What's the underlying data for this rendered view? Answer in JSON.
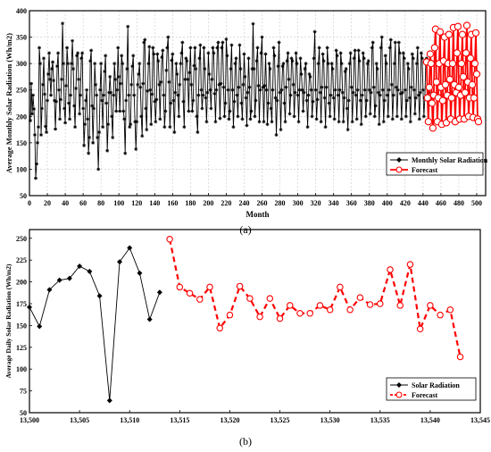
{
  "chart_data": [
    {
      "type": "line",
      "xlabel": "Month",
      "ylabel": "Average Monthly Solar Radiation (Wh/m2)",
      "xlim": [
        0,
        510
      ],
      "ylim": [
        50,
        400
      ],
      "x_ticks": [
        0,
        20,
        40,
        60,
        80,
        100,
        120,
        140,
        160,
        180,
        200,
        220,
        240,
        260,
        280,
        300,
        320,
        340,
        360,
        380,
        400,
        420,
        440,
        460,
        480,
        500
      ],
      "y_ticks": [
        50,
        100,
        150,
        200,
        250,
        300,
        350,
        400
      ],
      "grid": true,
      "legend_position": "bottom-right",
      "series": [
        {
          "name": "Monthly Solar Radiation",
          "color": "#000000",
          "x_start": 1,
          "values": [
            192,
            262,
            205,
            240,
            214,
            165,
            83,
            110,
            150,
            180,
            330,
            300,
            165,
            215,
            260,
            310,
            242,
            181,
            170,
            230,
            280,
            320,
            270,
            240,
            290,
            303,
            268,
            230,
            176,
            228,
            295,
            320,
            250,
            195,
            232,
            270,
            376,
            300,
            215,
            188,
            258,
            330,
            300,
            225,
            195,
            240,
            300,
            343,
            290,
            220,
            180,
            253,
            315,
            320,
            270,
            205,
            240,
            310,
            320,
            215,
            145,
            185,
            230,
            250,
            195,
            130,
            160,
            305,
            325,
            220,
            150,
            215,
            300,
            260,
            240,
            160,
            100,
            170,
            250,
            300,
            230,
            180,
            240,
            285,
            315,
            225,
            135,
            185,
            245,
            275,
            245,
            200,
            160,
            240,
            300,
            270,
            210,
            250,
            330,
            275,
            210,
            262,
            315,
            300,
            210,
            195,
            130,
            230,
            290,
            370,
            240,
            180,
            185,
            260,
            295,
            315,
            240,
            190,
            138,
            190,
            260,
            280,
            300,
            255,
            200,
            163,
            262,
            340,
            345,
            215,
            175,
            248,
            300,
            332,
            250,
            185,
            242,
            330,
            318,
            228,
            190,
            232,
            318,
            305,
            260,
            195,
            265,
            312,
            325,
            240,
            180,
            210,
            287,
            330,
            350,
            265,
            180,
            225,
            306,
            318,
            230,
            170,
            245,
            300,
            280,
            240,
            200,
            260,
            300,
            320,
            340,
            228,
            180,
            270,
            310,
            305,
            270,
            210,
            283,
            330,
            260,
            210,
            230,
            296,
            330,
            290,
            200,
            170,
            240,
            310,
            335,
            250,
            215,
            240,
            330,
            290,
            235,
            190,
            245,
            320,
            280,
            250,
            215,
            270,
            330,
            320,
            243,
            190,
            250,
            330,
            340,
            260,
            196,
            262,
            330,
            340,
            255,
            200,
            225,
            346,
            315,
            250,
            195,
            210,
            290,
            335,
            250,
            180,
            228,
            300,
            310,
            240,
            200,
            255,
            335,
            290,
            225,
            195,
            260,
            318,
            275,
            235,
            183,
            245,
            310,
            255,
            195,
            210,
            290,
            375,
            290,
            200,
            230,
            305,
            330,
            258,
            190,
            250,
            320,
            350,
            255,
            190,
            258,
            318,
            250,
            185,
            225,
            300,
            290,
            215,
            190,
            250,
            330,
            315,
            235,
            165,
            230,
            295,
            340,
            245,
            175,
            250,
            295,
            300,
            225,
            190,
            255,
            305,
            320,
            270,
            205,
            240,
            310,
            305,
            260,
            200,
            245,
            320,
            300,
            240,
            190,
            250,
            310,
            280,
            250,
            210,
            245,
            290,
            300,
            230,
            180,
            240,
            280,
            275,
            250,
            200,
            228,
            310,
            360,
            250,
            195,
            232,
            300,
            330,
            245,
            190,
            255,
            318,
            305,
            235,
            180,
            255,
            330,
            300,
            225,
            200,
            240,
            300,
            290,
            235,
            195,
            250,
            325,
            315,
            240,
            190,
            250,
            320,
            300,
            245,
            190,
            235,
            285,
            290,
            215,
            175,
            230,
            300,
            320,
            255,
            190,
            245,
            310,
            325,
            240,
            195,
            250,
            325,
            305,
            230,
            185,
            240,
            320,
            310,
            250,
            200,
            230,
            300,
            305,
            250,
            205,
            245,
            330,
            340,
            255,
            200,
            220,
            300,
            290,
            245,
            185,
            240,
            330,
            350,
            250,
            190,
            230,
            315,
            300,
            240,
            200,
            250,
            330,
            345,
            260,
            195,
            240,
            300,
            340,
            255,
            200,
            250,
            340,
            320,
            243,
            195,
            245,
            320,
            310,
            250,
            200,
            230,
            300,
            290,
            235,
            190,
            255,
            318,
            310,
            250,
            205,
            235,
            300,
            330,
            240,
            195,
            245,
            320,
            310,
            250,
            200,
            235,
            300,
            310,
            240,
            190,
            245
          ]
        },
        {
          "name": "Forecast",
          "color": "#ff0000",
          "x_start": 444,
          "values": [
            303,
            235,
            190,
            255,
            318,
            300,
            225,
            178,
            240,
            330,
            365,
            265,
            190,
            235,
            300,
            360,
            255,
            185,
            230,
            305,
            350,
            260,
            188,
            240,
            300,
            355,
            270,
            195,
            235,
            300,
            368,
            260,
            190,
            245,
            320,
            370,
            255,
            195,
            240,
            300,
            355,
            275,
            195,
            245,
            320,
            372,
            265,
            200,
            235,
            310,
            355,
            260,
            198,
            235,
            300,
            358,
            280,
            195,
            190
          ]
        }
      ]
    },
    {
      "type": "line",
      "xlabel": "",
      "ylabel": "Average Daily Solar Radiation (Wh/m2)",
      "xlim": [
        13500,
        13545
      ],
      "ylim": [
        50,
        260
      ],
      "x_ticks": [
        13500,
        13505,
        13510,
        13515,
        13520,
        13525,
        13530,
        13535,
        13540,
        13545
      ],
      "x_tick_labels": [
        "13,500",
        "13,505",
        "13,510",
        "13,515",
        "13,520",
        "13,525",
        "13,530",
        "13,535",
        "13,540",
        "13,545"
      ],
      "y_ticks": [
        50,
        75,
        100,
        125,
        150,
        175,
        200,
        225,
        250
      ],
      "grid": false,
      "legend_position": "bottom-right",
      "series": [
        {
          "name": "Solar Radiation",
          "color": "#000000",
          "x": [
            13500,
            13501,
            13502,
            13503,
            13504,
            13505,
            13506,
            13507,
            13508,
            13509,
            13510,
            13511,
            13512,
            13513
          ],
          "y": [
            171,
            149,
            191,
            202,
            204,
            218,
            212,
            184,
            64,
            223,
            239,
            210,
            157,
            188
          ]
        },
        {
          "name": "Forecast",
          "color": "#ff0000",
          "x": [
            13514,
            13515,
            13516,
            13517,
            13518,
            13519,
            13520,
            13521,
            13522,
            13523,
            13524,
            13525,
            13526,
            13527,
            13528,
            13529,
            13530,
            13531,
            13532,
            13533,
            13534,
            13535,
            13536,
            13537,
            13538,
            13539,
            13540,
            13541,
            13542,
            13543
          ],
          "y": [
            249,
            194,
            187,
            180,
            194,
            147,
            162,
            195,
            181,
            160,
            181,
            158,
            173,
            164,
            164,
            173,
            168,
            194,
            168,
            182,
            174,
            175,
            214,
            173,
            220,
            146,
            173,
            162,
            168,
            114
          ]
        }
      ]
    }
  ],
  "labels": {
    "panel_a": "(a)",
    "panel_b": "(b)"
  }
}
